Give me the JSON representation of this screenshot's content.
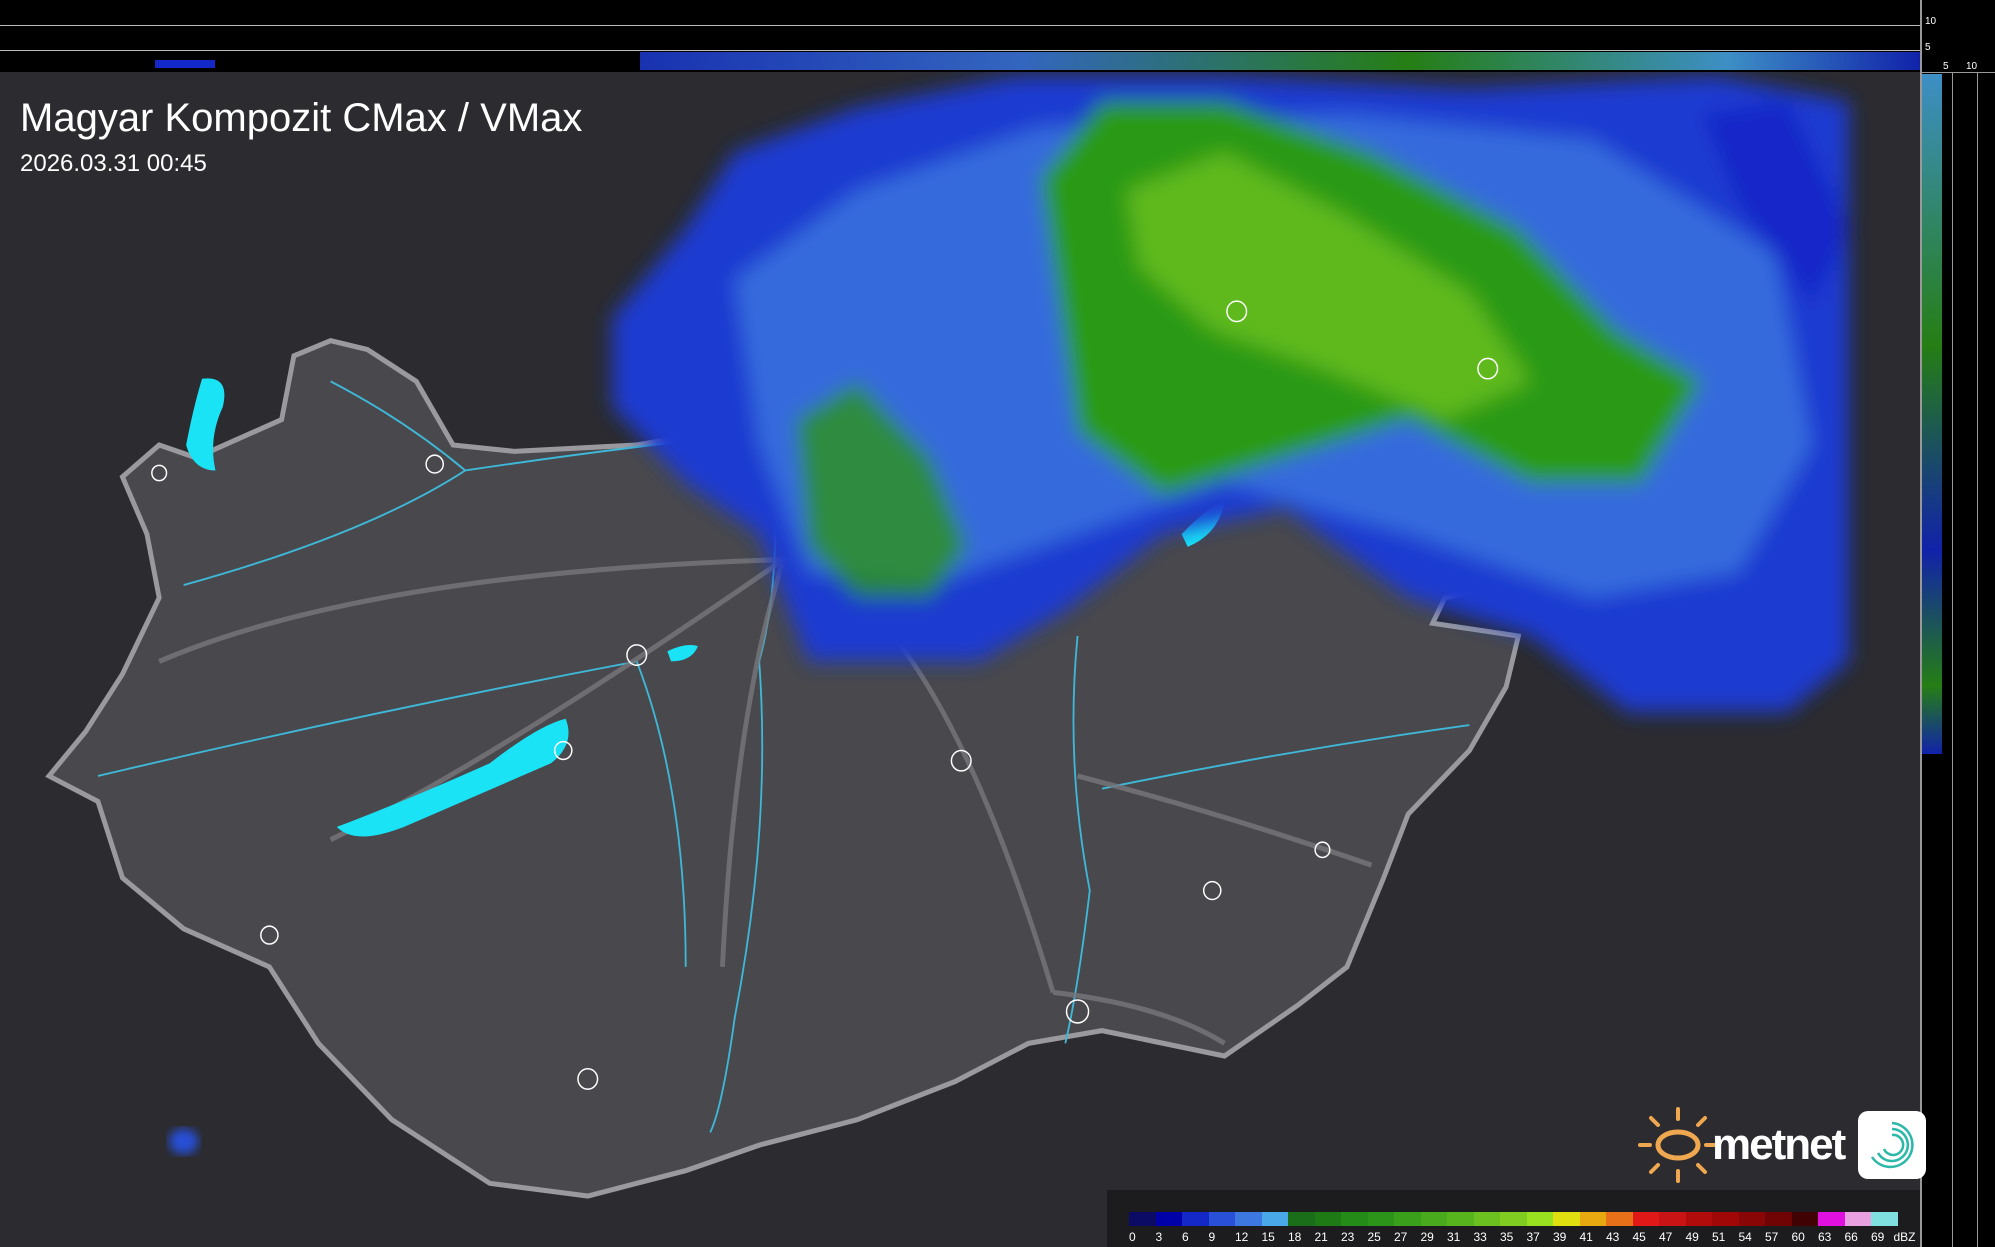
{
  "header": {
    "title": "Magyar Kompozit CMax / VMax",
    "timestamp": "2026.03.31 00:45"
  },
  "profile_axes": {
    "top_ticks": [
      "10",
      "5"
    ],
    "right_ticks": [
      "5",
      "10"
    ]
  },
  "legend": {
    "unit": "dBZ",
    "labels": [
      "0",
      "3",
      "6",
      "9",
      "12",
      "15",
      "18",
      "21",
      "23",
      "25",
      "27",
      "29",
      "31",
      "33",
      "35",
      "37",
      "39",
      "41",
      "43",
      "45",
      "47",
      "49",
      "51",
      "54",
      "57",
      "60",
      "63",
      "66",
      "69"
    ],
    "colors": [
      "#0b0b66",
      "#0000a8",
      "#1428c8",
      "#2850d8",
      "#3c78e0",
      "#48a8e8",
      "#1a6e1a",
      "#1e7a14",
      "#248a18",
      "#2c9418",
      "#3aa01c",
      "#48aa1c",
      "#58b41c",
      "#6cc020",
      "#80cc20",
      "#98e020",
      "#e0e010",
      "#e8a810",
      "#e87018",
      "#e01818",
      "#c81414",
      "#b00c0c",
      "#a00808",
      "#880606",
      "#700404",
      "#400202",
      "#e010e0",
      "#e8a0e0",
      "#80e0e0"
    ]
  },
  "logo": {
    "brand": "metnet"
  },
  "colors": {
    "lakes": "#19e3f5",
    "border": "#9a9a9e",
    "rivers": "#3fb7d6",
    "background": "#2b2b30"
  }
}
